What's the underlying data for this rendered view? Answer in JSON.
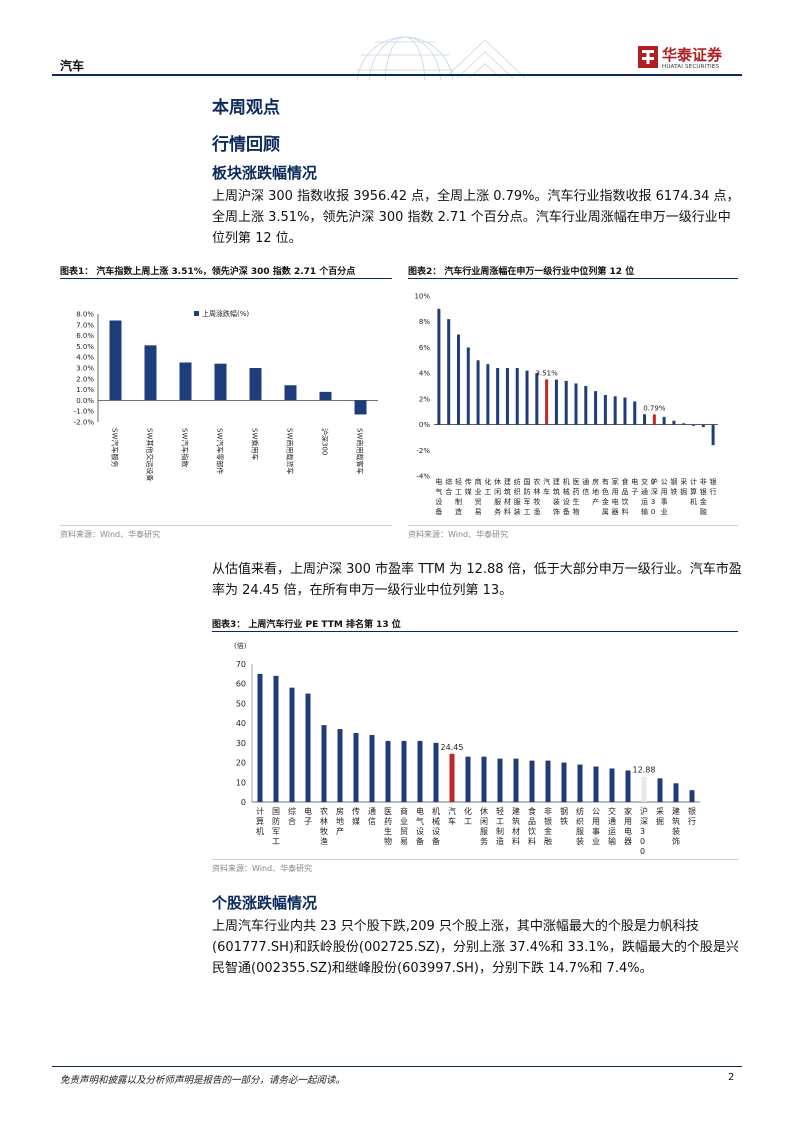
{
  "header": {
    "section": "汽车",
    "logo_cn": "华泰证券",
    "logo_en": "HUATAI SECURITIES"
  },
  "headings": {
    "h1": "本周观点",
    "h2": "行情回顾",
    "h3": "板块涨跌幅情况",
    "h4": "个股涨跌幅情况"
  },
  "paragraphs": {
    "p1": "上周沪深 300 指数收报 3956.42 点，全周上涨 0.79%。汽车行业指数收报 6174.34 点，全周上涨 3.51%，领先沪深 300 指数 2.71 个百分点。汽车行业周涨幅在申万一级行业中位列第 12 位。",
    "p2": "从估值来看，上周沪深 300 市盈率 TTM 为 12.88 倍，低于大部分申万一级行业。汽车市盈率为 24.45 倍，在所有申万一级行业中位列第 13。",
    "p3": "上周汽车行业内共 23 只个股下跌,209 只个股上涨，其中涨幅最大的个股是力帆科技(601777.SH)和跃岭股份(002725.SZ)，分别上涨 37.4%和 33.1%，跌幅最大的个股是兴民智通(002355.SZ)和继峰股份(603997.SH)，分别下跌 14.7%和 7.4%。"
  },
  "figures": {
    "fig1_title": "图表1：  汽车指数上周上涨 3.51%，领先沪深 300 指数 2.71 个百分点",
    "fig2_title": "图表2：  汽车行业周涨幅在申万一级行业中位列第 12 位",
    "fig3_title": "图表3：  上周汽车行业 PE TTM 排名第 13 位",
    "source": "资料来源：Wind、华泰研究"
  },
  "footer": {
    "disclaimer": "免责声明和披露以及分析师声明是报告的一部分，请务必一起阅读。",
    "page": "2"
  },
  "colors": {
    "navy": "#1f3d7a",
    "red": "#c0282d",
    "light": "#e8e8e8"
  },
  "chart_data": [
    {
      "type": "bar",
      "legend": "上周涨跌幅(%)",
      "legend_position": "top-right",
      "categories": [
        "SW汽车服务",
        "SW其他交运设备",
        "SW汽车指数",
        "SW汽车零部件",
        "SW乘用车",
        "SW商用载货车",
        "沪深300",
        "SW商用载客车"
      ],
      "values": [
        7.4,
        5.1,
        3.51,
        3.4,
        3.0,
        1.4,
        0.79,
        -1.3
      ],
      "y_ticks": [
        "8.0%",
        "7.0%",
        "6.0%",
        "5.0%",
        "4.0%",
        "3.0%",
        "2.0%",
        "1.0%",
        "0.0%",
        "-1.0%",
        "-2.0%"
      ],
      "ylim": [
        -2,
        8
      ]
    },
    {
      "type": "bar",
      "categories": [
        "电气设备",
        "综合",
        "轻工制造",
        "传媒",
        "商业贸易",
        "化工",
        "休闲服务",
        "建筑材料",
        "纺织服装",
        "国防军工",
        "农林牧渔",
        "汽车",
        "建筑装饰",
        "机械设备",
        "医药生物",
        "通信",
        "房地产",
        "有色金属",
        "家用电器",
        "食品饮料",
        "电子",
        "交通运输",
        "沪深300",
        "公用事业",
        "钢铁",
        "采掘",
        "计算机",
        "非银金融",
        "银行"
      ],
      "values": [
        9.0,
        8.2,
        7.0,
        6.0,
        5.0,
        4.7,
        4.4,
        4.4,
        4.4,
        4.2,
        4.0,
        3.51,
        3.5,
        3.4,
        3.2,
        3.0,
        2.6,
        2.3,
        2.2,
        2.1,
        1.8,
        0.8,
        0.79,
        0.6,
        0.3,
        0.1,
        -0.1,
        -0.2,
        -1.6
      ],
      "labels": {
        "汽车": "3.51%",
        "沪深300": "0.79%"
      },
      "y_ticks": [
        "10%",
        "8%",
        "6%",
        "4%",
        "2%",
        "0%",
        "-2%",
        "-4%"
      ],
      "ylim": [
        -4,
        10
      ]
    },
    {
      "type": "bar",
      "ylabel": "(倍)",
      "categories": [
        "计算机",
        "国防军工",
        "综合",
        "电子",
        "农林牧渔",
        "房地产",
        "传媒",
        "通信",
        "医药生物",
        "商业贸易",
        "电气设备",
        "机械设备",
        "汽车",
        "化工",
        "休闲服务",
        "轻工制造",
        "建筑材料",
        "食品饮料",
        "非银金融",
        "钢铁",
        "纺织服装",
        "公用事业",
        "交通运输",
        "家用电器",
        "沪深300",
        "采掘",
        "建筑装饰",
        "银行"
      ],
      "values": [
        65,
        64,
        58,
        55,
        39,
        37,
        35,
        34,
        31,
        31,
        31,
        30,
        24.45,
        23,
        23,
        22,
        22,
        21,
        21,
        20,
        19,
        18,
        17,
        16,
        12.88,
        12,
        9.5,
        6
      ],
      "labels": {
        "汽车": "24.45",
        "沪深300": "12.88"
      },
      "y_ticks": [
        "70",
        "60",
        "50",
        "40",
        "30",
        "20",
        "10",
        "0"
      ],
      "ylim": [
        0,
        70
      ]
    }
  ]
}
